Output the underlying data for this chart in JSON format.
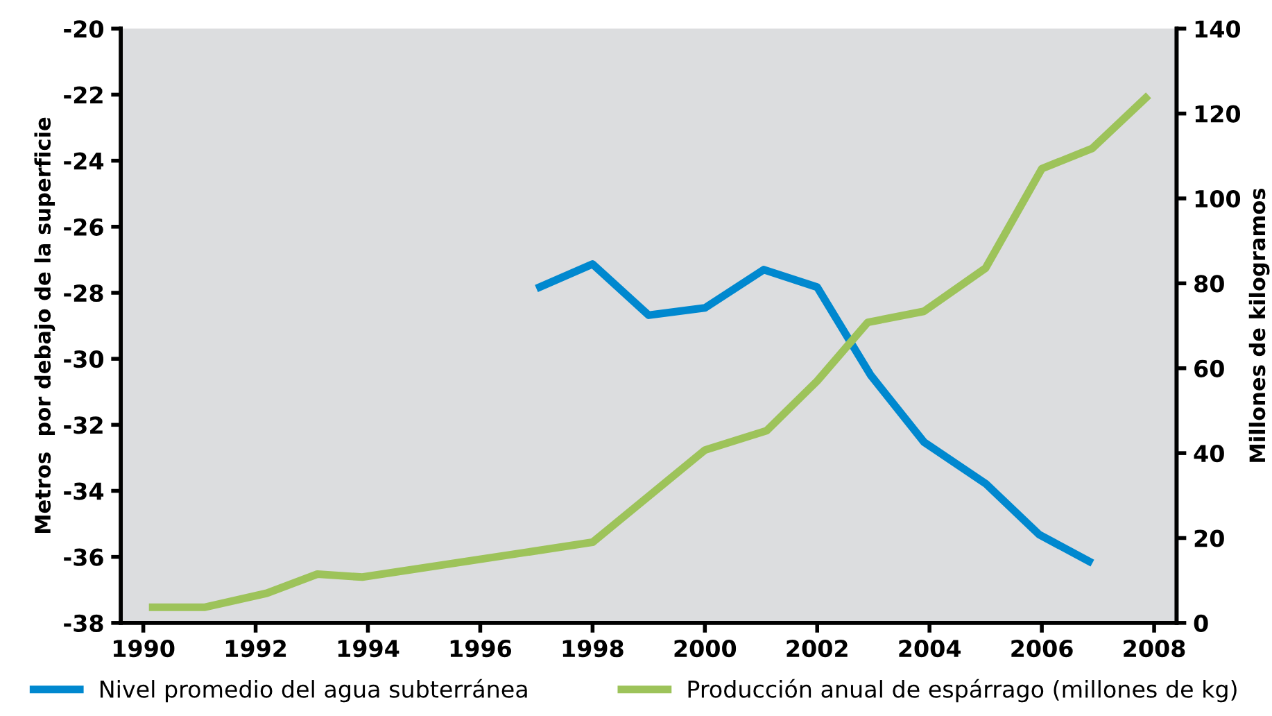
{
  "chart_data": {
    "type": "line",
    "xlim": [
      1989.6,
      2008.4
    ],
    "xticks": [
      1990,
      1992,
      1994,
      1996,
      1998,
      2000,
      2002,
      2004,
      2006,
      2008
    ],
    "ylim": [
      -38,
      -20
    ],
    "yticks": [
      -38,
      -36,
      -34,
      -32,
      -30,
      -28,
      -26,
      -24,
      -22,
      -20
    ],
    "y2lim": [
      0,
      140
    ],
    "y2ticks": [
      0,
      20,
      40,
      60,
      80,
      100,
      120,
      140
    ],
    "ylabel": "Metros  por debajo de la superficie",
    "y2label": "Millones de kilogramos",
    "grid": false,
    "legend": "bottom",
    "marker": "none",
    "line_style": "solid",
    "series": [
      {
        "name": "Nivel promedio del agua subterránea",
        "color": "#0088cf",
        "x": [
          1997.0,
          1998.0,
          1999.0,
          2000.0,
          2001.05,
          2002.0,
          2002.95,
          2003.9,
          2005.0,
          2005.95,
          2006.9
        ],
        "values": [
          -27.87,
          -27.13,
          -28.68,
          -28.46,
          -27.3,
          -27.83,
          -30.49,
          -32.52,
          -33.78,
          -35.32,
          -36.19
        ]
      },
      {
        "name": "Producción anual de espárrago (millones de kg)",
        "color": "#9dc35a",
        "axis": "y2",
        "x": [
          1990.1,
          1991.1,
          1992.2,
          1993.1,
          1993.9,
          1998.0,
          2000.0,
          2001.1,
          2002.0,
          2002.9,
          2003.9,
          2005.0,
          2006.0,
          2006.9,
          2007.9
        ],
        "values": [
          3.7,
          3.7,
          7.0,
          11.5,
          10.8,
          19.0,
          40.7,
          45.3,
          57.0,
          70.8,
          73.4,
          83.6,
          107.0,
          111.8,
          124.3
        ]
      }
    ]
  }
}
